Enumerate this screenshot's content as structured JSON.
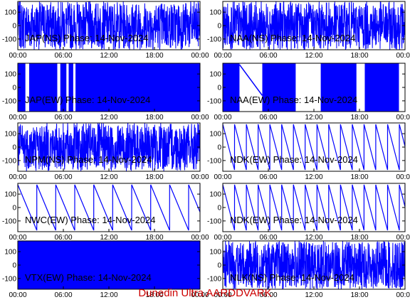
{
  "footer": "Dunedin Ultra AARDDVARK",
  "colors": {
    "trace": "#0000ff",
    "axes": "#000000",
    "footer": "#cc0000"
  },
  "chart_data": [
    {
      "type": "line",
      "title": "JAP(NS) Phase: 14-Nov-2024",
      "pattern": "noise",
      "xlim": [
        0,
        24
      ],
      "ylim": [
        -180,
        180
      ],
      "yticks": [
        -100,
        0,
        100
      ],
      "xticks": [
        "00:00",
        "06:00",
        "12:00",
        "18:00",
        "00:00"
      ]
    },
    {
      "type": "line",
      "title": "NAA(NS) Phase: 14-Nov-2024",
      "pattern": "noise",
      "xlim": [
        0,
        24
      ],
      "ylim": [
        -180,
        180
      ],
      "yticks": [
        -100,
        0,
        100
      ],
      "xticks": [
        "00:00",
        "06:00",
        "12:00",
        "18:00",
        "00:00"
      ]
    },
    {
      "type": "line",
      "title": "JAP(EW) Phase: 14-Nov-2024",
      "pattern": "solid",
      "xlim": [
        0,
        24
      ],
      "ylim": [
        -180,
        180
      ],
      "yticks": [
        -100,
        0,
        100
      ],
      "xticks": [
        "00:00",
        "06:00",
        "12:00",
        "18:00",
        "00:00"
      ]
    },
    {
      "type": "line",
      "title": "NAA(EW) Phase: 14-Nov-2024",
      "pattern": "naa",
      "xlim": [
        0,
        24
      ],
      "ylim": [
        -180,
        180
      ],
      "yticks": [
        -100,
        0,
        100
      ],
      "xticks": [
        "00:00",
        "06:00",
        "12:00",
        "18:00",
        "00:00"
      ]
    },
    {
      "type": "line",
      "title": "NPM(NS) Phase: 14-Nov-2024",
      "pattern": "noise",
      "xlim": [
        0,
        24
      ],
      "ylim": [
        -180,
        180
      ],
      "yticks": [
        -100,
        0,
        100
      ],
      "xticks": [
        "00:00",
        "06:00",
        "12:00",
        "18:00",
        "00:00"
      ]
    },
    {
      "type": "line",
      "title": "NDK(EW) Phase: 14-Nov-2024",
      "pattern": "saw",
      "period_hours": 1.55,
      "xlim": [
        0,
        24
      ],
      "ylim": [
        -180,
        180
      ],
      "yticks": [
        -100,
        0,
        100
      ],
      "xticks": [
        "00:00",
        "06:00",
        "12:00",
        "18:00",
        "00:00"
      ]
    },
    {
      "type": "line",
      "title": "NWC(EW) Phase: 14-Nov-2024",
      "pattern": "saw",
      "period_hours": 2.5,
      "xlim": [
        0,
        24
      ],
      "ylim": [
        -180,
        180
      ],
      "yticks": [
        -100,
        0,
        100
      ],
      "xticks": [
        "00:00",
        "06:00",
        "12:00",
        "18:00",
        "00:00"
      ]
    },
    {
      "type": "line",
      "title": "NDK(EW) Phase: 14-Nov-2024",
      "pattern": "saw",
      "period_hours": 1.55,
      "xlim": [
        0,
        24
      ],
      "ylim": [
        -180,
        180
      ],
      "yticks": [
        -100,
        0,
        100
      ],
      "xticks": [
        "00:00",
        "06:00",
        "12:00",
        "18:00",
        "00:00"
      ]
    },
    {
      "type": "line",
      "title": "VTX(EW) Phase: 14-Nov-2024",
      "pattern": "solid",
      "xlim": [
        0,
        24
      ],
      "ylim": [
        -180,
        180
      ],
      "yticks": [
        -100,
        0,
        100
      ],
      "xticks": [
        "00:00",
        "06:00",
        "12:00",
        "18:00",
        "00:00"
      ]
    },
    {
      "type": "line",
      "title": "NLK(NS) Phase: 14-Nov-2024",
      "pattern": "noise",
      "xlim": [
        0,
        24
      ],
      "ylim": [
        -180,
        180
      ],
      "yticks": [
        -100,
        0,
        100
      ],
      "xticks": [
        "00:00",
        "06:00",
        "12:00",
        "18:00",
        "00:00"
      ]
    }
  ]
}
